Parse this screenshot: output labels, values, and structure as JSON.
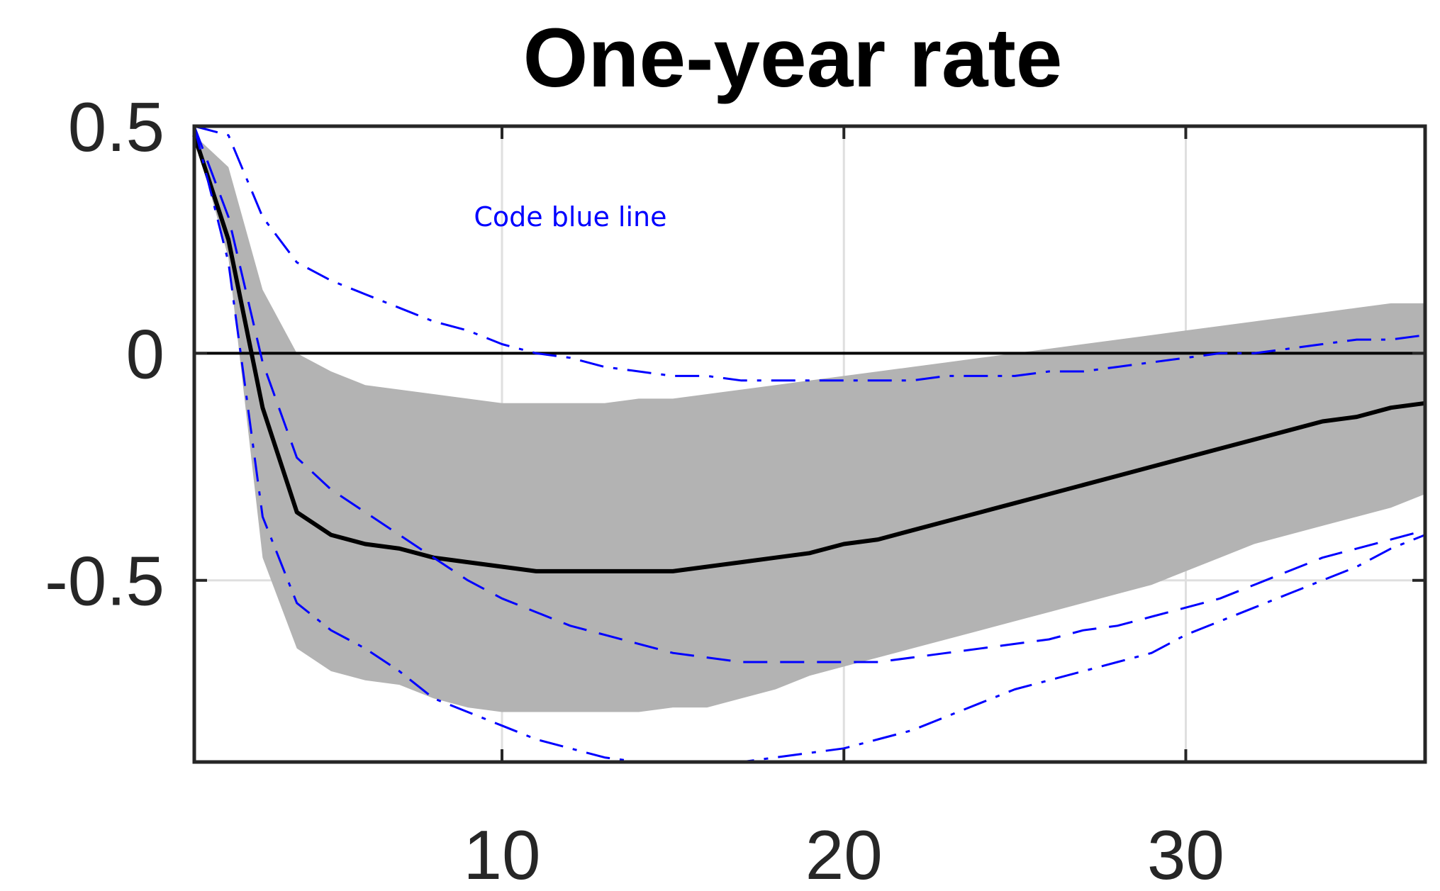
{
  "chart_data": {
    "type": "line",
    "title": "One-year rate",
    "xlabel": "",
    "ylabel": "",
    "xlim": [
      1,
      37
    ],
    "ylim": [
      -0.9,
      0.5
    ],
    "xticks": [
      10,
      20,
      30
    ],
    "xtick_labels": [
      "10",
      "20",
      "30"
    ],
    "yticks": [
      0.5,
      0,
      -0.5
    ],
    "ytick_labels": [
      "0.5",
      "0",
      "-0.5"
    ],
    "grid": true,
    "legend": "none",
    "annotation": {
      "text": "Code blue line",
      "x": 12,
      "y": 0.28,
      "color": "#0000FF"
    },
    "zero_line": true,
    "band": {
      "x": [
        1,
        2,
        3,
        4,
        5,
        6,
        7,
        8,
        9,
        10,
        11,
        12,
        13,
        14,
        15,
        16,
        17,
        18,
        19,
        20,
        21,
        22,
        23,
        24,
        25,
        26,
        27,
        28,
        29,
        30,
        31,
        32,
        33,
        34,
        35,
        36,
        37
      ],
      "upper": [
        0.48,
        0.41,
        0.14,
        0.0,
        -0.04,
        -0.07,
        -0.08,
        -0.09,
        -0.1,
        -0.11,
        -0.11,
        -0.11,
        -0.11,
        -0.1,
        -0.1,
        -0.09,
        -0.08,
        -0.07,
        -0.06,
        -0.05,
        -0.04,
        -0.03,
        -0.02,
        -0.01,
        0.0,
        0.01,
        0.02,
        0.03,
        0.04,
        0.05,
        0.06,
        0.07,
        0.08,
        0.09,
        0.1,
        0.11,
        0.11
      ],
      "lower": [
        0.48,
        0.21,
        -0.45,
        -0.65,
        -0.7,
        -0.72,
        -0.73,
        -0.76,
        -0.78,
        -0.79,
        -0.79,
        -0.79,
        -0.79,
        -0.79,
        -0.78,
        -0.78,
        -0.76,
        -0.74,
        -0.71,
        -0.69,
        -0.67,
        -0.65,
        -0.63,
        -0.61,
        -0.59,
        -0.57,
        -0.55,
        -0.53,
        -0.51,
        -0.48,
        -0.45,
        -0.42,
        -0.4,
        -0.38,
        -0.36,
        -0.34,
        -0.31
      ],
      "color": "#B3B3B3"
    },
    "series": [
      {
        "style": "solid",
        "color": "#000000",
        "x": [
          1,
          2,
          3,
          4,
          5,
          6,
          7,
          8,
          9,
          10,
          11,
          12,
          13,
          14,
          15,
          16,
          17,
          18,
          19,
          20,
          21,
          22,
          23,
          24,
          25,
          26,
          27,
          28,
          29,
          30,
          31,
          32,
          33,
          34,
          35,
          36,
          37
        ],
        "values": [
          0.48,
          0.25,
          -0.12,
          -0.35,
          -0.4,
          -0.42,
          -0.43,
          -0.45,
          -0.46,
          -0.47,
          -0.48,
          -0.48,
          -0.48,
          -0.48,
          -0.48,
          -0.47,
          -0.46,
          -0.45,
          -0.44,
          -0.42,
          -0.41,
          -0.39,
          -0.37,
          -0.35,
          -0.33,
          -0.31,
          -0.29,
          -0.27,
          -0.25,
          -0.23,
          -0.21,
          -0.19,
          -0.17,
          -0.15,
          -0.14,
          -0.12,
          -0.11
        ]
      },
      {
        "style": "dashed",
        "color": "#0000FF",
        "x": [
          1,
          2,
          3,
          4,
          5,
          6,
          7,
          8,
          9,
          10,
          11,
          12,
          13,
          14,
          15,
          16,
          17,
          18,
          19,
          20,
          21,
          22,
          23,
          24,
          25,
          26,
          27,
          28,
          29,
          30,
          31,
          32,
          33,
          34,
          35,
          36,
          37
        ],
        "values": [
          0.5,
          0.3,
          -0.02,
          -0.23,
          -0.3,
          -0.35,
          -0.4,
          -0.45,
          -0.5,
          -0.54,
          -0.57,
          -0.6,
          -0.62,
          -0.64,
          -0.66,
          -0.67,
          -0.68,
          -0.68,
          -0.68,
          -0.68,
          -0.68,
          -0.67,
          -0.66,
          -0.65,
          -0.64,
          -0.63,
          -0.61,
          -0.6,
          -0.58,
          -0.56,
          -0.54,
          -0.51,
          -0.48,
          -0.45,
          -0.43,
          -0.41,
          -0.39
        ]
      },
      {
        "style": "dashdot",
        "color": "#0000FF",
        "x": [
          1,
          2,
          3,
          4,
          5,
          6,
          7,
          8,
          9,
          10,
          11,
          12,
          13,
          14,
          15,
          16,
          17,
          18,
          19,
          20,
          21,
          22,
          23,
          24,
          25,
          26,
          27,
          28,
          29,
          30,
          31,
          32,
          33,
          34,
          35,
          36,
          37
        ],
        "values": [
          0.5,
          0.48,
          0.3,
          0.2,
          0.16,
          0.13,
          0.1,
          0.07,
          0.05,
          0.02,
          0.0,
          -0.01,
          -0.03,
          -0.04,
          -0.05,
          -0.05,
          -0.06,
          -0.06,
          -0.06,
          -0.06,
          -0.06,
          -0.06,
          -0.05,
          -0.05,
          -0.05,
          -0.04,
          -0.04,
          -0.03,
          -0.02,
          -0.01,
          0.0,
          0.0,
          0.01,
          0.02,
          0.03,
          0.03,
          0.04
        ]
      },
      {
        "style": "dashdot",
        "color": "#0000FF",
        "x": [
          1,
          2,
          3,
          4,
          5,
          6,
          7,
          8,
          9,
          10,
          11,
          12,
          13,
          14,
          15,
          16,
          17,
          18,
          19,
          20,
          21,
          22,
          23,
          24,
          25,
          26,
          27,
          28,
          29,
          30,
          31,
          32,
          33,
          34,
          35,
          36,
          37
        ],
        "values": [
          0.5,
          0.2,
          -0.36,
          -0.55,
          -0.61,
          -0.65,
          -0.7,
          -0.76,
          -0.79,
          -0.82,
          -0.85,
          -0.87,
          -0.89,
          -0.9,
          -0.9,
          -0.9,
          -0.9,
          -0.89,
          -0.88,
          -0.87,
          -0.85,
          -0.83,
          -0.8,
          -0.77,
          -0.74,
          -0.72,
          -0.7,
          -0.68,
          -0.66,
          -0.62,
          -0.59,
          -0.56,
          -0.53,
          -0.5,
          -0.47,
          -0.43,
          -0.4
        ]
      }
    ]
  }
}
